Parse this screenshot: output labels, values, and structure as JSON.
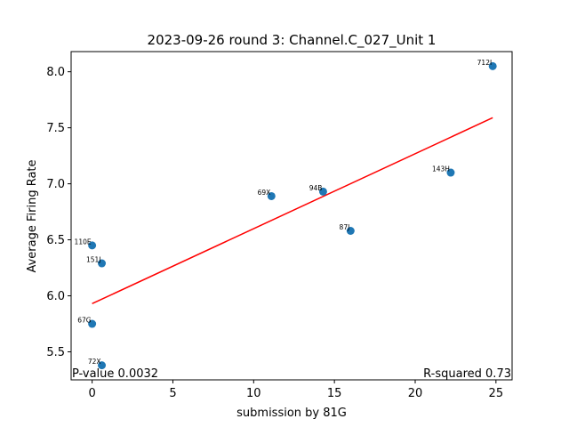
{
  "chart_data": {
    "type": "scatter",
    "title": "2023-09-26 round 3: Channel.C_027_Unit 1",
    "xlabel": "submission by 81G",
    "ylabel": "Average Firing Rate",
    "xlim": [
      -1.3,
      26
    ],
    "ylim": [
      5.25,
      8.18
    ],
    "xticks": [
      0,
      5,
      10,
      15,
      20,
      25
    ],
    "yticks": [
      5.5,
      6.0,
      6.5,
      7.0,
      7.5,
      8.0
    ],
    "ytick_labels": [
      "5.5",
      "6.0",
      "6.5",
      "7.0",
      "7.5",
      "8.0"
    ],
    "grid": false,
    "point_color": "#1f77b4",
    "points": [
      {
        "label": "712I",
        "x": 24.8,
        "y": 8.05
      },
      {
        "label": "143H",
        "x": 22.2,
        "y": 7.1
      },
      {
        "label": "94B",
        "x": 14.3,
        "y": 6.93
      },
      {
        "label": "69X",
        "x": 11.1,
        "y": 6.89
      },
      {
        "label": "87J",
        "x": 16.0,
        "y": 6.58
      },
      {
        "label": "110E",
        "x": 0.0,
        "y": 6.45
      },
      {
        "label": "151J",
        "x": 0.6,
        "y": 6.29
      },
      {
        "label": "67G",
        "x": 0.0,
        "y": 5.75
      },
      {
        "label": "72X",
        "x": 0.6,
        "y": 5.38
      }
    ],
    "fit_line": {
      "color": "#ff0000",
      "x": [
        0,
        24.8
      ],
      "y": [
        5.93,
        7.59
      ]
    },
    "annotations": {
      "p_value": "P-value 0.0032",
      "r_squared": "R-squared 0.73"
    }
  }
}
